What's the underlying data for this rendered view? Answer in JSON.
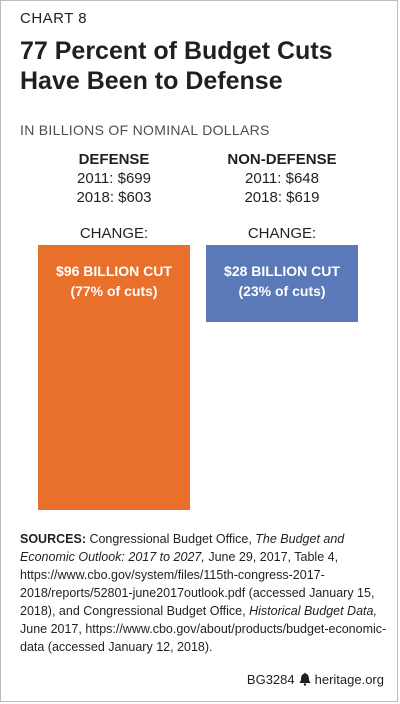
{
  "chart_label": "CHART 8",
  "title_line1": "77 Percent of Budget Cuts",
  "title_line2": "Have Been to Defense",
  "subtitle": "IN BILLIONS OF NOMINAL DOLLARS",
  "columns": [
    {
      "name": "DEFENSE",
      "line2011": "2011: $699",
      "line2018": "2018: $603",
      "change_label": "CHANGE:"
    },
    {
      "name": "NON-DEFENSE",
      "line2011": "2011: $648",
      "line2018": "2018: $619",
      "change_label": "CHANGE:"
    }
  ],
  "chart_data": {
    "type": "bar",
    "categories": [
      "DEFENSE",
      "NON-DEFENSE"
    ],
    "values": [
      96,
      28
    ],
    "value_labels": [
      "$96 BILLION CUT",
      "$28 BILLION CUT"
    ],
    "share_labels": [
      "(77% of cuts)",
      "(23% of cuts)"
    ],
    "colors": [
      "#e8702a",
      "#5b78b8"
    ],
    "title": "77 Percent of Budget Cuts Have Been to Defense",
    "ylabel": "IN BILLIONS OF NOMINAL DOLLARS"
  },
  "sources": {
    "label": "SOURCES:",
    "text1": " Congressional Budget Office, ",
    "italic1": "The Budget and Economic Outlook: 2017 to 2027,",
    "text2": " June 29, 2017, Table 4, https://www.cbo.gov/system/files/115th-congress-2017-2018/reports/52801-june2017outlook.pdf (accessed January 15, 2018), and Congressional Budget Office, ",
    "italic2": "Historical Budget Data,",
    "text3": " June 2017, https://www.cbo.gov/about/products/budget-economic-data (accessed January 12, 2018)."
  },
  "footer": {
    "code": "BG3284",
    "site": "heritage.org"
  }
}
